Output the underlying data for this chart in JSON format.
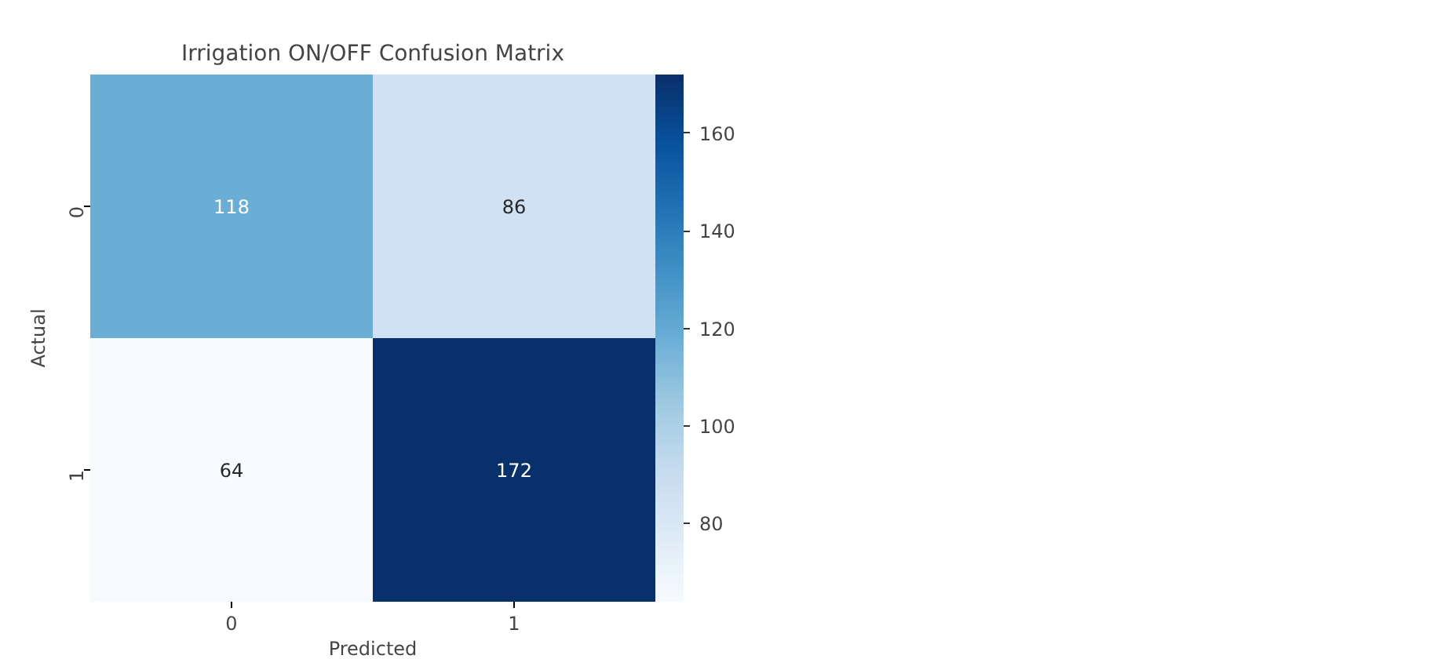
{
  "chart_data": {
    "type": "heatmap",
    "title": "Irrigation ON/OFF Confusion Matrix",
    "xlabel": "Predicted",
    "ylabel": "Actual",
    "categories": [
      "0",
      "1"
    ],
    "y_categories": [
      "0",
      "1"
    ],
    "cells": [
      [
        118,
        86
      ],
      [
        64,
        172
      ]
    ],
    "data_labels": true,
    "clim": [
      64,
      172
    ],
    "cticks": [
      80,
      100,
      120,
      140,
      160
    ]
  }
}
